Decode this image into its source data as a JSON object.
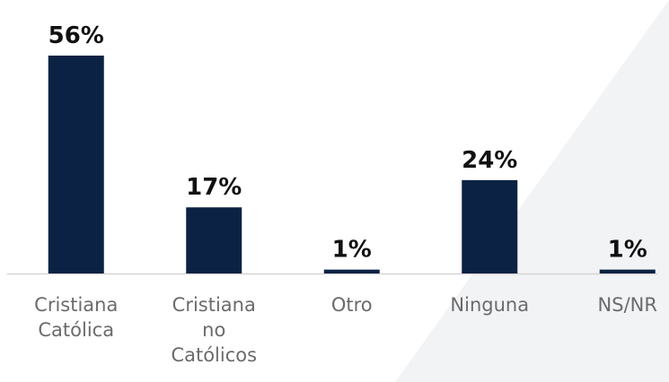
{
  "chart_data": {
    "type": "bar",
    "categories": [
      "Cristiana Católica",
      "Cristiana no Católicos",
      "Otro",
      "Ninguna",
      "NS/NR"
    ],
    "values": [
      56,
      17,
      1,
      24,
      1
    ],
    "value_labels": [
      "56%",
      "17%",
      "1%",
      "24%",
      "1%"
    ],
    "color": "#0b2244",
    "ylim": [
      0,
      56
    ]
  }
}
